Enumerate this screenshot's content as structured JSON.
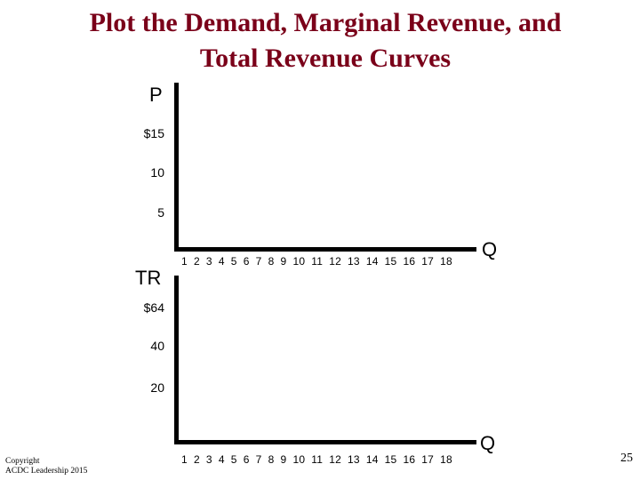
{
  "slide": {
    "title_line1": "Plot the Demand, Marginal Revenue, and",
    "title_line2": "Total Revenue Curves",
    "copyright_line1": "Copyright",
    "copyright_line2": "ACDC Leadership 2015",
    "page_number": "25"
  },
  "chart_data": [
    {
      "type": "line",
      "ylabel": "P",
      "xlabel": "Q",
      "y_ticks": [
        "$15",
        "10",
        "5"
      ],
      "x_ticks": [
        "1",
        "2",
        "3",
        "4",
        "5",
        "6",
        "7",
        "8",
        "9",
        "10",
        "11",
        "12",
        "13",
        "14",
        "15",
        "16",
        "17",
        "18"
      ],
      "series": []
    },
    {
      "type": "line",
      "ylabel": "TR",
      "xlabel": "Q",
      "y_ticks": [
        "$64",
        "40",
        "20"
      ],
      "x_ticks": [
        "1",
        "2",
        "3",
        "4",
        "5",
        "6",
        "7",
        "8",
        "9",
        "10",
        "11",
        "12",
        "13",
        "14",
        "15",
        "16",
        "17",
        "18"
      ],
      "series": []
    }
  ]
}
